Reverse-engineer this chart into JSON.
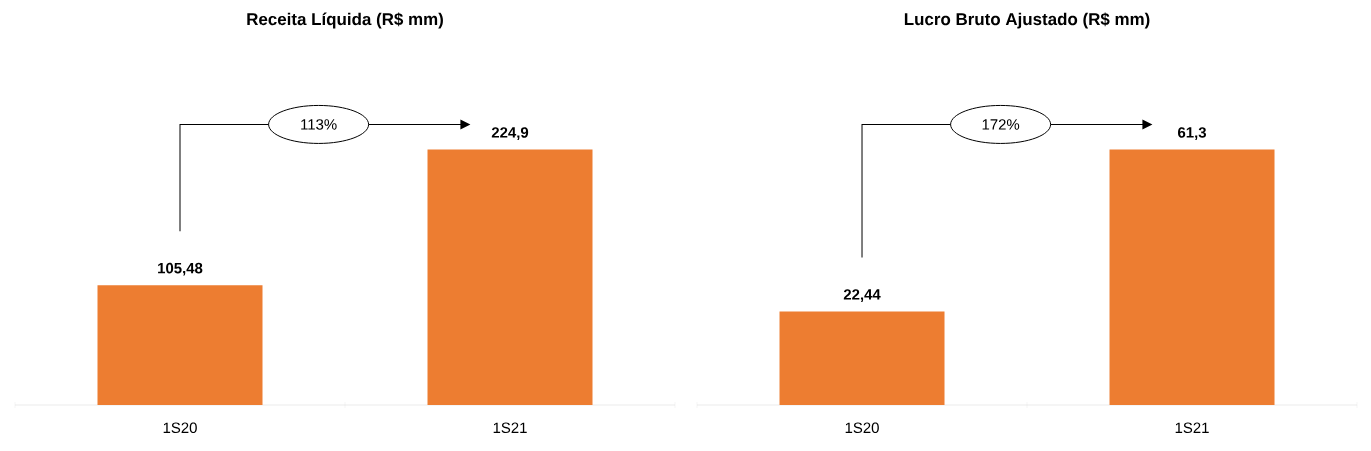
{
  "chart_data": [
    {
      "type": "bar",
      "title": "Receita Líquida (R$ mm)",
      "categories": [
        "1S20",
        "1S21"
      ],
      "values": [
        105.48,
        224.9
      ],
      "value_labels": [
        "105,48",
        "224,9"
      ],
      "color": "#ed7d31",
      "annotations": [
        "113%"
      ]
    },
    {
      "type": "bar",
      "title": "Lucro Bruto Ajustado (R$ mm)",
      "categories": [
        "1S20",
        "1S21"
      ],
      "values": [
        22.44,
        61.3
      ],
      "value_labels": [
        "22,44",
        "61,3"
      ],
      "color": "#ed7d31",
      "annotations": [
        "172%"
      ]
    }
  ]
}
